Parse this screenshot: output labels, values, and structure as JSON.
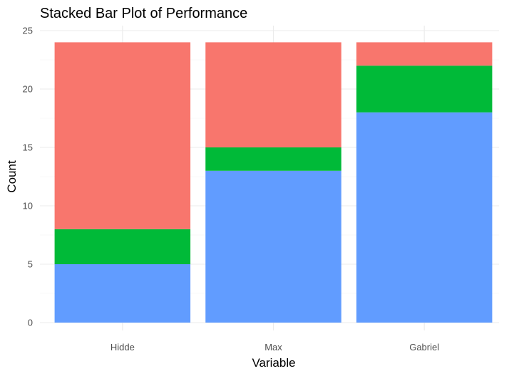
{
  "chart_data": {
    "type": "bar",
    "stacked": true,
    "title": "Stacked Bar Plot of Performance",
    "xlabel": "Variable",
    "ylabel": "Count",
    "categories": [
      "Hidde",
      "Max",
      "Gabriel"
    ],
    "ylim": [
      0,
      25
    ],
    "y_ticks": [
      0,
      5,
      10,
      15,
      20,
      25
    ],
    "grid": true,
    "legend": "none",
    "series": [
      {
        "color": "#619CFF",
        "values": [
          5,
          13,
          18
        ]
      },
      {
        "color": "#00BA38",
        "values": [
          3,
          2,
          4
        ]
      },
      {
        "color": "#F8766D",
        "values": [
          16,
          9,
          2
        ]
      }
    ]
  }
}
